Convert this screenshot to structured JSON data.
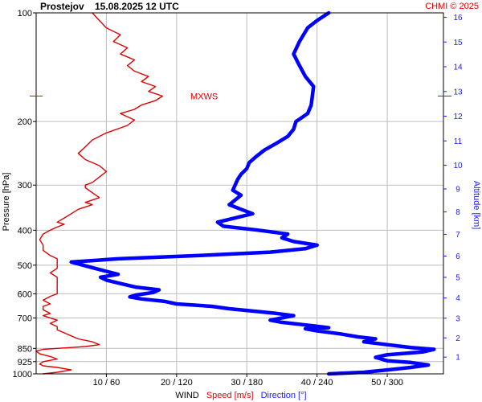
{
  "header": {
    "station": "Prostejov",
    "datetime": "15.08.2025 12 UTC",
    "credit": "CHMI © 2025"
  },
  "chart_data": {
    "type": "line",
    "y_axis": {
      "label": "Pressure [hPa]",
      "scale": "log",
      "range": [
        1000,
        100
      ],
      "ticks": [
        "100",
        "200",
        "300",
        "400",
        "500",
        "600",
        "700",
        "850",
        "925",
        "1000"
      ]
    },
    "y2_axis": {
      "label": "Altitude [km]",
      "ticks": [
        "1",
        "2",
        "3",
        "4",
        "5",
        "6",
        "7",
        "8",
        "9",
        "10",
        "11",
        "12",
        "13",
        "14",
        "15",
        "16"
      ]
    },
    "x_axis": {
      "label_prefix": "WIND",
      "label_speed": "Speed [m/s]",
      "label_direction": "Direction [°]",
      "ticks": [
        "10 / 60",
        "20 / 120",
        "30 / 180",
        "40 / 240",
        "50 / 300"
      ],
      "speed_range": [
        0,
        58
      ],
      "direction_range": [
        0,
        348
      ]
    },
    "mxws": {
      "label": "MXWS",
      "pressure": 170
    },
    "grid": true,
    "series": [
      {
        "name": "Speed [m/s]",
        "color": "#e00000",
        "points": [
          [
            1000,
            1
          ],
          [
            990,
            3
          ],
          [
            975,
            5
          ],
          [
            960,
            3
          ],
          [
            950,
            1
          ],
          [
            940,
            0.5
          ],
          [
            925,
            1
          ],
          [
            910,
            3
          ],
          [
            895,
            2
          ],
          [
            880,
            0.5
          ],
          [
            865,
            0
          ],
          [
            855,
            1
          ],
          [
            850,
            3
          ],
          [
            845,
            5
          ],
          [
            840,
            7
          ],
          [
            830,
            9
          ],
          [
            815,
            8
          ],
          [
            800,
            6
          ],
          [
            785,
            5
          ],
          [
            770,
            4
          ],
          [
            755,
            3
          ],
          [
            740,
            3
          ],
          [
            725,
            2
          ],
          [
            710,
            3
          ],
          [
            700,
            2
          ],
          [
            690,
            1
          ],
          [
            680,
            2
          ],
          [
            665,
            1
          ],
          [
            650,
            1
          ],
          [
            640,
            2
          ],
          [
            625,
            1
          ],
          [
            610,
            2
          ],
          [
            600,
            3
          ],
          [
            585,
            3
          ],
          [
            570,
            3
          ],
          [
            555,
            3
          ],
          [
            540,
            3
          ],
          [
            525,
            2
          ],
          [
            510,
            3
          ],
          [
            495,
            3
          ],
          [
            480,
            3
          ],
          [
            470,
            2
          ],
          [
            455,
            1
          ],
          [
            440,
            1
          ],
          [
            425,
            0.5
          ],
          [
            410,
            1
          ],
          [
            400,
            2
          ],
          [
            392,
            3
          ],
          [
            385,
            4
          ],
          [
            380,
            3
          ],
          [
            370,
            4
          ],
          [
            360,
            5
          ],
          [
            350,
            6
          ],
          [
            340,
            8
          ],
          [
            335,
            7
          ],
          [
            325,
            9
          ],
          [
            315,
            8
          ],
          [
            305,
            7
          ],
          [
            300,
            7
          ],
          [
            295,
            8
          ],
          [
            285,
            9
          ],
          [
            275,
            10
          ],
          [
            265,
            9
          ],
          [
            255,
            7
          ],
          [
            245,
            6
          ],
          [
            235,
            7
          ],
          [
            225,
            8
          ],
          [
            215,
            10
          ],
          [
            205,
            13
          ],
          [
            198,
            14
          ],
          [
            190,
            12
          ],
          [
            185,
            14
          ],
          [
            180,
            15
          ],
          [
            175,
            17
          ],
          [
            170,
            18
          ],
          [
            165,
            16
          ],
          [
            160,
            17
          ],
          [
            155,
            15
          ],
          [
            150,
            16
          ],
          [
            145,
            14
          ],
          [
            140,
            13
          ],
          [
            135,
            14
          ],
          [
            130,
            12
          ],
          [
            125,
            13
          ],
          [
            120,
            11
          ],
          [
            115,
            12
          ],
          [
            110,
            10
          ],
          [
            105,
            9
          ],
          [
            100,
            8
          ]
        ]
      },
      {
        "name": "Direction [°]",
        "color": "#0000ff",
        "points": [
          [
            1000,
            250
          ],
          [
            990,
            280
          ],
          [
            975,
            300
          ],
          [
            960,
            320
          ],
          [
            945,
            335
          ],
          [
            930,
            320
          ],
          [
            920,
            300
          ],
          [
            900,
            290
          ],
          [
            885,
            300
          ],
          [
            870,
            330
          ],
          [
            855,
            340
          ],
          [
            845,
            320
          ],
          [
            830,
            300
          ],
          [
            815,
            280
          ],
          [
            800,
            290
          ],
          [
            790,
            275
          ],
          [
            775,
            260
          ],
          [
            760,
            240
          ],
          [
            750,
            230
          ],
          [
            745,
            250
          ],
          [
            735,
            235
          ],
          [
            720,
            210
          ],
          [
            710,
            200
          ],
          [
            700,
            210
          ],
          [
            690,
            220
          ],
          [
            680,
            205
          ],
          [
            670,
            185
          ],
          [
            660,
            165
          ],
          [
            650,
            150
          ],
          [
            640,
            120
          ],
          [
            630,
            110
          ],
          [
            620,
            90
          ],
          [
            612,
            80
          ],
          [
            605,
            85
          ],
          [
            595,
            100
          ],
          [
            585,
            105
          ],
          [
            575,
            85
          ],
          [
            565,
            75
          ],
          [
            550,
            60
          ],
          [
            540,
            55
          ],
          [
            530,
            70
          ],
          [
            520,
            60
          ],
          [
            510,
            50
          ],
          [
            500,
            40
          ],
          [
            490,
            30
          ],
          [
            480,
            70
          ],
          [
            470,
            140
          ],
          [
            460,
            200
          ],
          [
            450,
            230
          ],
          [
            440,
            240
          ],
          [
            430,
            220
          ],
          [
            420,
            210
          ],
          [
            410,
            215
          ],
          [
            400,
            190
          ],
          [
            390,
            160
          ],
          [
            380,
            155
          ],
          [
            370,
            170
          ],
          [
            360,
            185
          ],
          [
            350,
            175
          ],
          [
            340,
            165
          ],
          [
            330,
            170
          ],
          [
            320,
            175
          ],
          [
            310,
            168
          ],
          [
            300,
            170
          ],
          [
            290,
            172
          ],
          [
            280,
            175
          ],
          [
            270,
            180
          ],
          [
            260,
            182
          ],
          [
            250,
            188
          ],
          [
            240,
            195
          ],
          [
            230,
            205
          ],
          [
            220,
            215
          ],
          [
            210,
            220
          ],
          [
            200,
            222
          ],
          [
            190,
            232
          ],
          [
            180,
            235
          ],
          [
            170,
            236
          ],
          [
            160,
            237
          ],
          [
            150,
            230
          ],
          [
            140,
            225
          ],
          [
            130,
            220
          ],
          [
            120,
            225
          ],
          [
            110,
            232
          ],
          [
            105,
            240
          ],
          [
            100,
            250
          ]
        ]
      }
    ]
  }
}
